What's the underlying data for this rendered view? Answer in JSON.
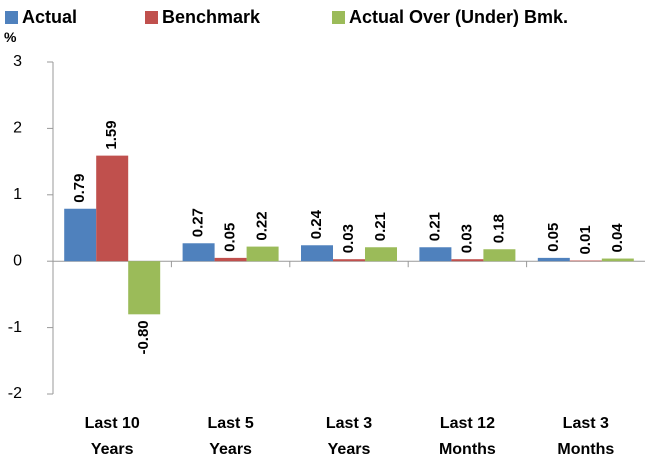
{
  "chart_data": {
    "type": "bar",
    "y_label": "%",
    "categories": [
      "Last 10\nYears",
      "Last 5\nYears",
      "Last 3\nYears",
      "Last 12\nMonths",
      "Last 3\nMonths"
    ],
    "series": [
      {
        "name": "Actual",
        "color": "#4f81bd",
        "values": [
          0.79,
          0.27,
          0.24,
          0.21,
          0.05
        ],
        "value_labels": [
          "0.79",
          "0.27",
          "0.24",
          "0.21",
          "0.05"
        ]
      },
      {
        "name": "Benchmark",
        "color": "#c0504d",
        "values": [
          1.59,
          0.05,
          0.03,
          0.03,
          0.01
        ],
        "value_labels": [
          "1.59",
          "0.05",
          "0.03",
          "0.03",
          "0.01"
        ]
      },
      {
        "name": "Actual Over (Under) Bmk.",
        "color": "#9bbb59",
        "values": [
          -0.8,
          0.22,
          0.21,
          0.18,
          0.04
        ],
        "value_labels": [
          "-0.80",
          "0.22",
          "0.21",
          "0.18",
          "0.04"
        ]
      }
    ],
    "ylim": [
      -2,
      3
    ],
    "yticks": [
      -2,
      -1,
      0,
      1,
      2,
      3
    ],
    "legend": "top"
  }
}
